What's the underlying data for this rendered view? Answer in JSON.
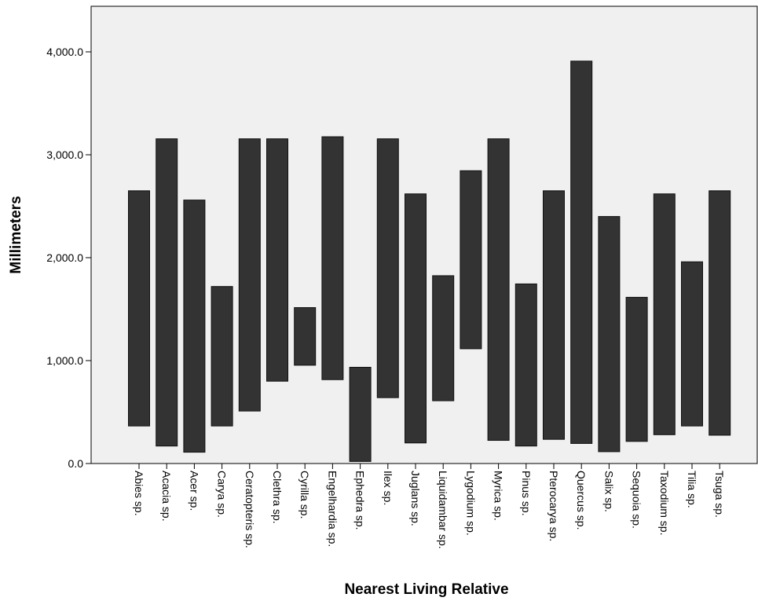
{
  "chart_data": {
    "type": "bar",
    "subtype": "floating-range",
    "xlabel": "Nearest Living Relative",
    "ylabel": "Millimeters",
    "ylim": [
      0,
      4400
    ],
    "grid": false,
    "legend": "none",
    "bar_color": "#333333",
    "plot_background": "#f0f0f0",
    "y_ticks": [
      {
        "value": 0,
        "label": "0.0"
      },
      {
        "value": 1000,
        "label": "1,000.0"
      },
      {
        "value": 2000,
        "label": "2,000.0"
      },
      {
        "value": 3000,
        "label": "3,000.0"
      },
      {
        "value": 4000,
        "label": "4,000.0"
      }
    ],
    "categories": [
      "Abies sp.",
      "Acacia sp.",
      "Acer sp.",
      "Carya sp.",
      "Ceratopteris sp.",
      "Clethra sp.",
      "Cyrilla sp.",
      "Engelhardia sp.",
      "Ephedra sp.",
      "Ilex sp.",
      "Juglans sp.",
      "Liquidambar sp.",
      "Lygodium sp.",
      "Myrica sp.",
      "Pinus sp.",
      "Pterocarya sp.",
      "Quercus sp.",
      "Salix sp.",
      "Sequoia sp.",
      "Taxodium sp.",
      "Tilia sp.",
      "Tsuga sp."
    ],
    "series": [
      {
        "low": [
          365,
          170,
          110,
          365,
          510,
          800,
          955,
          815,
          20,
          640,
          200,
          610,
          1115,
          225,
          170,
          235,
          195,
          115,
          215,
          280,
          365,
          275
        ],
        "high": [
          2650,
          3155,
          2560,
          1720,
          3155,
          3155,
          1515,
          3175,
          935,
          3155,
          2620,
          1825,
          2845,
          3155,
          1745,
          2650,
          3910,
          2400,
          1615,
          2620,
          1960,
          2650
        ]
      }
    ]
  }
}
